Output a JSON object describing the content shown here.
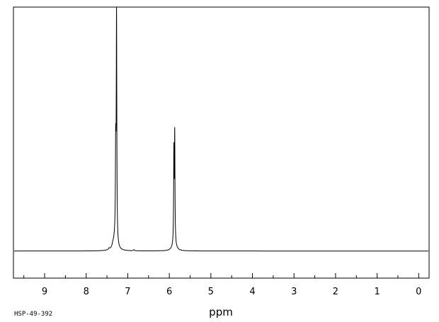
{
  "chart_data": {
    "type": "line",
    "title": "",
    "xlabel": "ppm",
    "ylabel": "",
    "x_axis_reversed": true,
    "xlim": [
      9.75,
      -0.25
    ],
    "ylim": [
      -0.12,
      1.08
    ],
    "grid": false,
    "ticks": {
      "major": [
        9,
        8,
        7,
        6,
        5,
        4,
        3,
        2,
        1,
        0
      ],
      "major_labels": [
        "9",
        "8",
        "7",
        "6",
        "5",
        "4",
        "3",
        "2",
        "1",
        "0"
      ],
      "minor": [
        9.5,
        8.5,
        7.5,
        6.5,
        5.5,
        4.5,
        3.5,
        2.5,
        1.5,
        0.5
      ]
    },
    "series": [
      {
        "peaks": [
          {
            "ppm": 7.27,
            "height": 1.0,
            "width": 0.008
          },
          {
            "ppm": 7.29,
            "height": 0.38,
            "width": 0.008
          },
          {
            "ppm": 7.31,
            "height": 0.05,
            "width": 0.05
          },
          {
            "ppm": 5.87,
            "height": 0.48,
            "width": 0.007
          },
          {
            "ppm": 5.89,
            "height": 0.4,
            "width": 0.007
          },
          {
            "ppm": 5.88,
            "height": 0.03,
            "width": 0.05
          },
          {
            "ppm": 7.45,
            "height": 0.006,
            "width": 0.015
          },
          {
            "ppm": 7.36,
            "height": 0.008,
            "width": 0.015
          },
          {
            "ppm": 6.85,
            "height": 0.005,
            "width": 0.015
          }
        ]
      }
    ]
  },
  "footer": {
    "code": "HSP-49-392"
  },
  "colors": {
    "line": "#000000",
    "frame": "#000000",
    "background": "#ffffff"
  }
}
